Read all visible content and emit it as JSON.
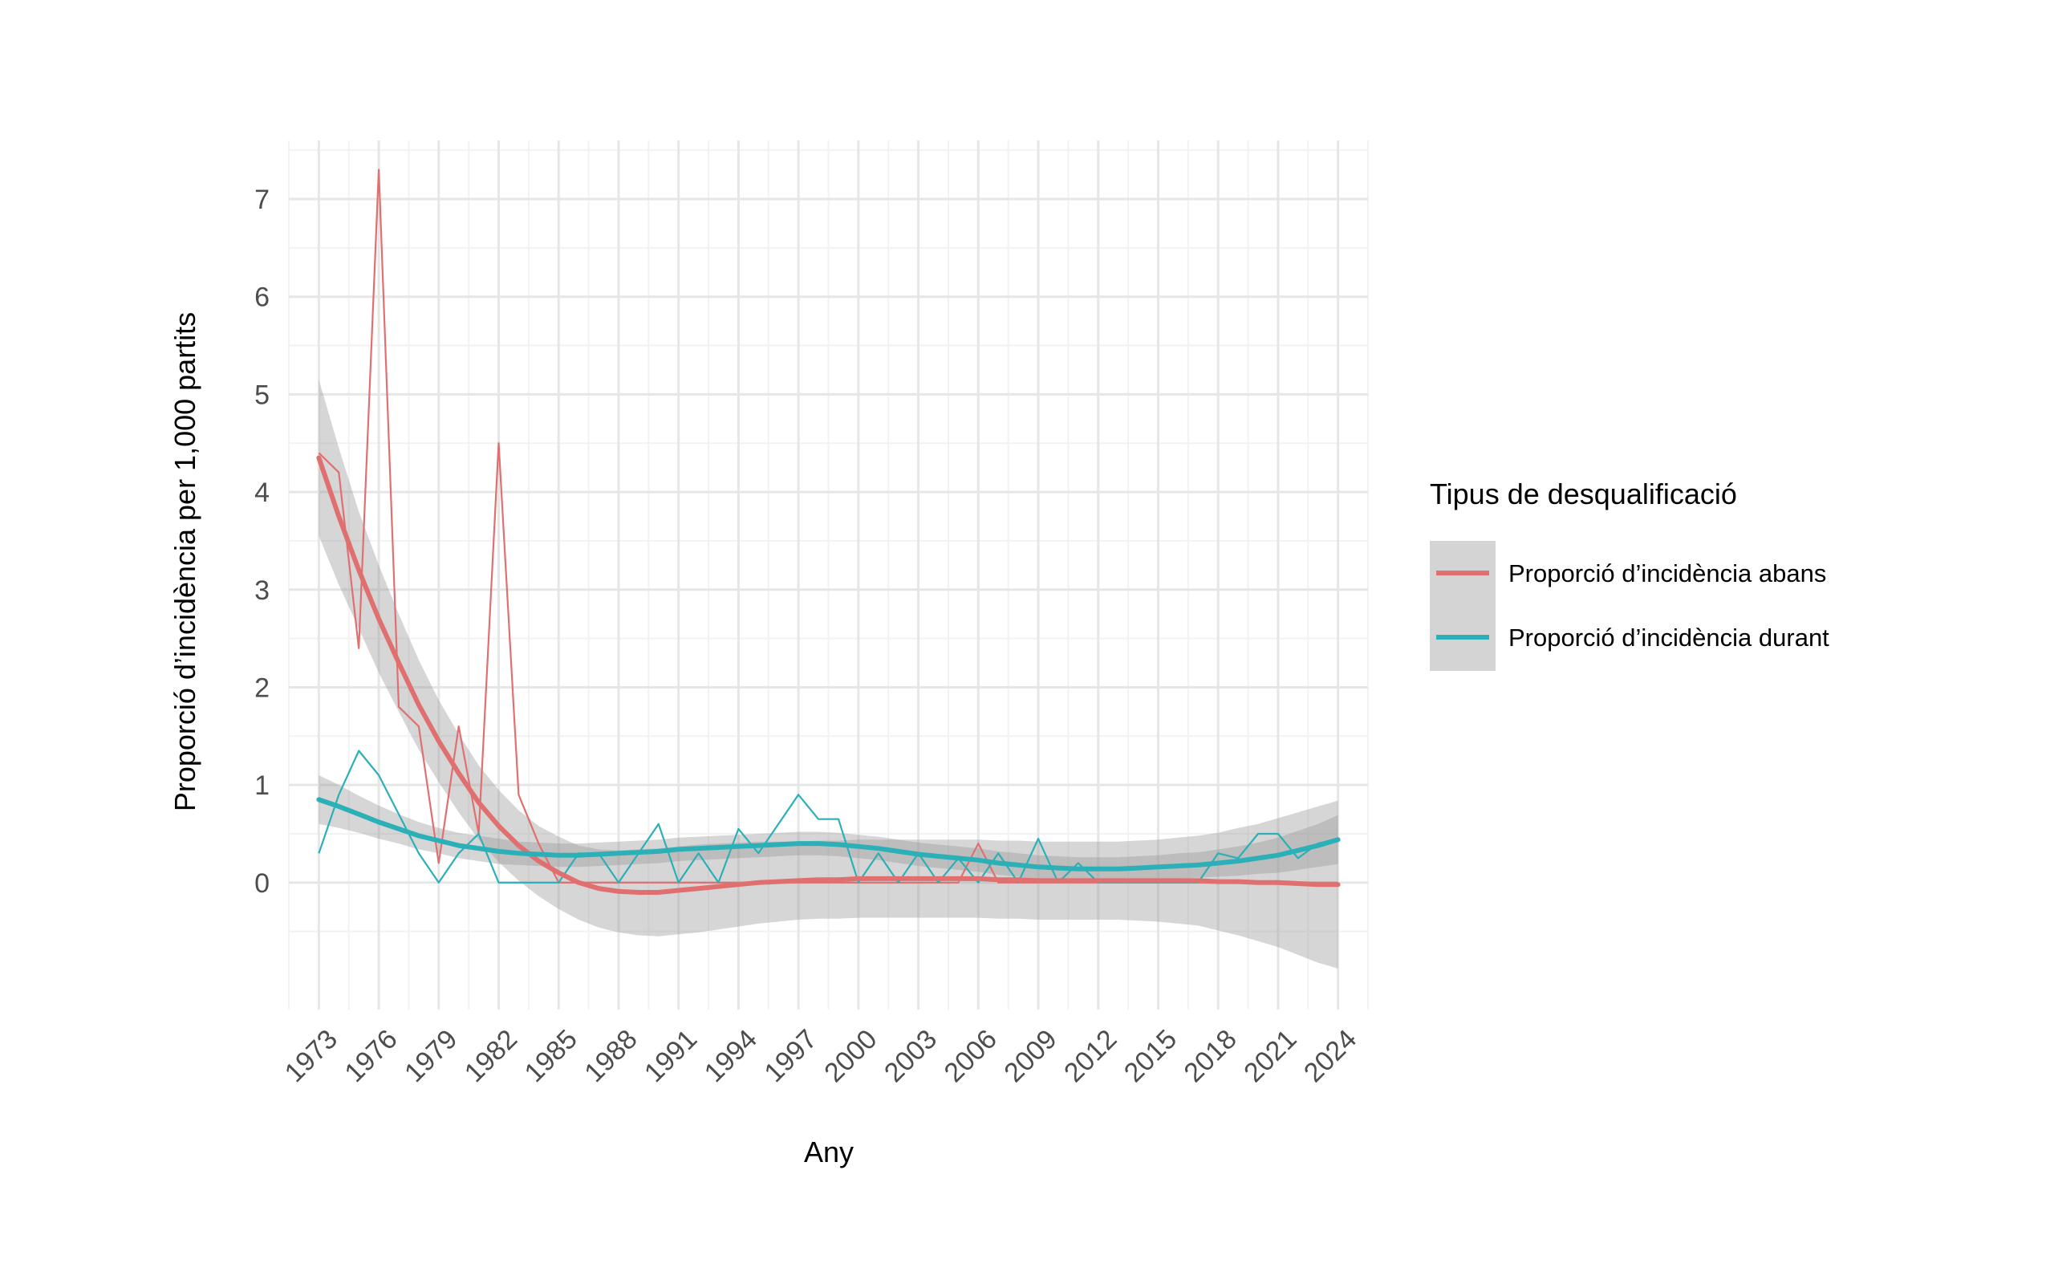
{
  "chart_data": {
    "type": "line",
    "title": "",
    "xlabel": "Any",
    "ylabel": "Proporció d’incidència per 1,000 partits",
    "xlim": [
      1971.5,
      2025.5
    ],
    "ylim": [
      -1.3,
      7.6
    ],
    "x_ticks": [
      1973,
      1976,
      1979,
      1982,
      1985,
      1988,
      1991,
      1994,
      1997,
      2000,
      2003,
      2006,
      2009,
      2012,
      2015,
      2018,
      2021,
      2024
    ],
    "x_tick_labels": [
      "1973",
      "1976",
      "1979",
      "1982",
      "1985",
      "1988",
      "1991",
      "1994",
      "1997",
      "2000",
      "2003",
      "2006",
      "2009",
      "2012",
      "2015",
      "2018",
      "2021",
      "2024"
    ],
    "y_ticks": [
      0,
      1,
      2,
      3,
      4,
      5,
      6,
      7
    ],
    "y_tick_labels": [
      "0",
      "1",
      "2",
      "3",
      "4",
      "5",
      "6",
      "7"
    ],
    "grid": true,
    "legend": {
      "title": "Tipus de desqualificació",
      "position": "right"
    },
    "x": [
      1973,
      1974,
      1975,
      1976,
      1977,
      1978,
      1979,
      1980,
      1981,
      1982,
      1983,
      1984,
      1985,
      1986,
      1987,
      1988,
      1989,
      1990,
      1991,
      1992,
      1993,
      1994,
      1995,
      1996,
      1997,
      1998,
      1999,
      2000,
      2001,
      2002,
      2003,
      2004,
      2005,
      2006,
      2007,
      2008,
      2009,
      2010,
      2011,
      2012,
      2013,
      2014,
      2015,
      2016,
      2017,
      2018,
      2019,
      2020,
      2021,
      2022,
      2023,
      2024
    ],
    "series": [
      {
        "name": "Proporció d’incidència abans",
        "color": "#e07070",
        "values": [
          4.4,
          4.2,
          2.4,
          7.3,
          1.8,
          1.6,
          0.2,
          1.6,
          0.5,
          4.5,
          0.9,
          0.4,
          0.0,
          0.0,
          0.0,
          0.0,
          0.0,
          0.0,
          0.0,
          0.0,
          0.0,
          0.0,
          0.0,
          0.0,
          0.0,
          0.0,
          0.0,
          0.0,
          0.0,
          0.0,
          0.0,
          0.0,
          0.0,
          0.4,
          0.0,
          0.0,
          0.0,
          0.0,
          0.0,
          0.0,
          0.0,
          0.0,
          0.0,
          0.0,
          0.0,
          0.0,
          0.0,
          0.0,
          0.0,
          0.0,
          0.0,
          0.0
        ],
        "smooth": [
          4.35,
          3.75,
          3.2,
          2.7,
          2.25,
          1.82,
          1.45,
          1.12,
          0.82,
          0.58,
          0.38,
          0.22,
          0.1,
          0.0,
          -0.06,
          -0.09,
          -0.1,
          -0.1,
          -0.08,
          -0.06,
          -0.04,
          -0.02,
          0.0,
          0.01,
          0.02,
          0.03,
          0.03,
          0.04,
          0.04,
          0.04,
          0.04,
          0.04,
          0.04,
          0.04,
          0.03,
          0.03,
          0.02,
          0.02,
          0.02,
          0.02,
          0.02,
          0.02,
          0.02,
          0.02,
          0.02,
          0.01,
          0.01,
          0.0,
          0.0,
          -0.01,
          -0.02,
          -0.02
        ],
        "se": [
          0.8,
          0.7,
          0.6,
          0.55,
          0.5,
          0.46,
          0.42,
          0.4,
          0.38,
          0.37,
          0.36,
          0.36,
          0.37,
          0.38,
          0.4,
          0.42,
          0.44,
          0.45,
          0.45,
          0.45,
          0.44,
          0.43,
          0.42,
          0.41,
          0.4,
          0.4,
          0.4,
          0.4,
          0.4,
          0.4,
          0.4,
          0.4,
          0.4,
          0.4,
          0.4,
          0.4,
          0.4,
          0.4,
          0.4,
          0.4,
          0.4,
          0.41,
          0.42,
          0.44,
          0.46,
          0.5,
          0.55,
          0.6,
          0.66,
          0.73,
          0.8,
          0.86
        ]
      },
      {
        "name": "Proporció d’incidència durant",
        "color": "#2bb0b8",
        "values": [
          0.3,
          0.9,
          1.35,
          1.1,
          0.7,
          0.3,
          0.0,
          0.3,
          0.5,
          0.0,
          0.0,
          0.0,
          0.0,
          0.3,
          0.3,
          0.0,
          0.3,
          0.6,
          0.0,
          0.3,
          0.0,
          0.55,
          0.3,
          0.6,
          0.9,
          0.65,
          0.65,
          0.0,
          0.3,
          0.0,
          0.3,
          0.0,
          0.25,
          0.0,
          0.3,
          0.0,
          0.45,
          0.0,
          0.2,
          0.0,
          0.0,
          0.0,
          0.0,
          0.0,
          0.0,
          0.3,
          0.25,
          0.5,
          0.5,
          0.25,
          0.4,
          0.45
        ],
        "smooth": [
          0.85,
          0.78,
          0.7,
          0.62,
          0.55,
          0.48,
          0.43,
          0.38,
          0.35,
          0.32,
          0.3,
          0.29,
          0.28,
          0.28,
          0.29,
          0.3,
          0.31,
          0.32,
          0.34,
          0.35,
          0.36,
          0.37,
          0.38,
          0.39,
          0.4,
          0.4,
          0.39,
          0.37,
          0.35,
          0.32,
          0.29,
          0.27,
          0.25,
          0.23,
          0.2,
          0.18,
          0.16,
          0.15,
          0.14,
          0.14,
          0.14,
          0.15,
          0.16,
          0.17,
          0.18,
          0.2,
          0.22,
          0.25,
          0.28,
          0.33,
          0.38,
          0.44
        ],
        "se": [
          0.25,
          0.22,
          0.19,
          0.17,
          0.15,
          0.14,
          0.13,
          0.13,
          0.13,
          0.13,
          0.12,
          0.12,
          0.12,
          0.12,
          0.12,
          0.12,
          0.12,
          0.12,
          0.12,
          0.12,
          0.12,
          0.12,
          0.12,
          0.12,
          0.12,
          0.12,
          0.12,
          0.12,
          0.12,
          0.12,
          0.12,
          0.12,
          0.12,
          0.12,
          0.12,
          0.12,
          0.12,
          0.12,
          0.12,
          0.12,
          0.12,
          0.12,
          0.12,
          0.13,
          0.13,
          0.14,
          0.15,
          0.16,
          0.18,
          0.2,
          0.22,
          0.25
        ]
      }
    ]
  }
}
